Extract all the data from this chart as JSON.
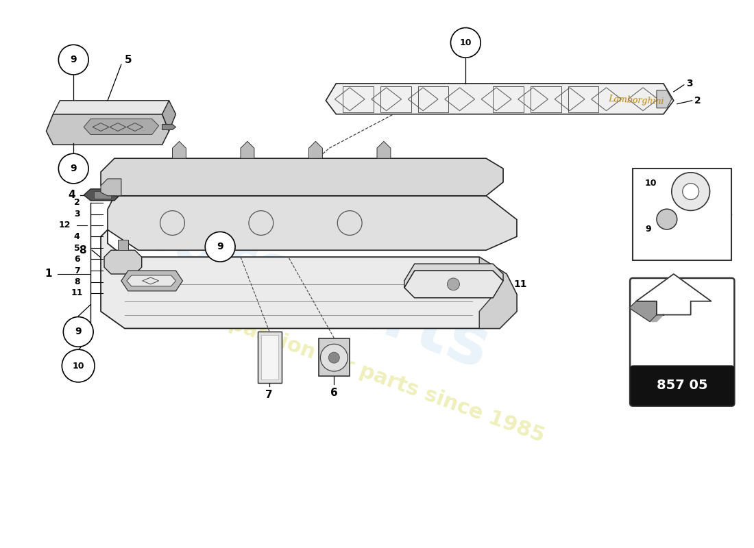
{
  "background_color": "#ffffff",
  "part_number_text": "857 05",
  "watermark_blue": "#4499cc",
  "watermark_yellow": "#cccc22",
  "lamborghini_color": "#b8860b",
  "line_color": "#222222",
  "fill_light": "#f0f0f0",
  "fill_mid": "#d8d8d8",
  "fill_dark": "#888888"
}
